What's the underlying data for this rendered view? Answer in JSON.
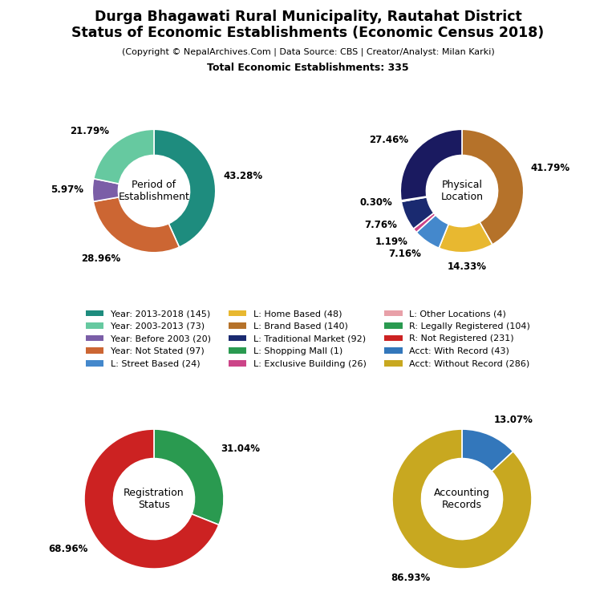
{
  "title": "Durga Bhagawati Rural Municipality, Rautahat District\nStatus of Economic Establishments (Economic Census 2018)",
  "subtitle": "(Copyright © NepalArchives.Com | Data Source: CBS | Creator/Analyst: Milan Karki)",
  "annotations": [
    "Total Economic Establishments: 335"
  ],
  "legend": "center",
  "legend_items": [
    {
      "name": "Year: 2013-2018 (145)",
      "color": "#1e8c7e"
    },
    {
      "name": "Year: 2003-2013 (73)",
      "color": "#66c9a0"
    },
    {
      "name": "Year: Before 2003 (20)",
      "color": "#7b5ea7"
    },
    {
      "name": "Year: Not Stated (97)",
      "color": "#cc6633"
    },
    {
      "name": "L: Street Based (24)",
      "color": "#4488cc"
    },
    {
      "name": "L: Home Based (48)",
      "color": "#e8b830"
    },
    {
      "name": "L: Brand Based (140)",
      "color": "#b5722a"
    },
    {
      "name": "L: Traditional Market (92)",
      "color": "#1a2a70"
    },
    {
      "name": "L: Shopping Mall (1)",
      "color": "#2a9a50"
    },
    {
      "name": "L: Exclusive Building (26)",
      "color": "#cc4488"
    },
    {
      "name": "L: Other Locations (4)",
      "color": "#e8a0a8"
    },
    {
      "name": "R: Legally Registered (104)",
      "color": "#2a9a50"
    },
    {
      "name": "R: Not Registered (231)",
      "color": "#cc2222"
    },
    {
      "name": "Acct: With Record (43)",
      "color": "#3377bb"
    },
    {
      "name": "Acct: Without Record (286)",
      "color": "#c8a820"
    }
  ],
  "chart_data": [
    {
      "type": "pie",
      "label": "Period of\nEstablishment",
      "values": [
        43.28,
        28.96,
        5.97,
        21.79
      ],
      "value_labels": [
        "43.28%",
        "28.96%",
        "5.97%",
        "21.79%"
      ],
      "colors": [
        "#1e8c7e",
        "#cc6633",
        "#7b5ea7",
        "#66c9a0"
      ],
      "data_labels": true
    },
    {
      "type": "pie",
      "label": "Physical\nLocation",
      "values": [
        41.79,
        14.33,
        7.16,
        1.19,
        7.76,
        0.3,
        27.46
      ],
      "value_labels": [
        "41.79%",
        "14.33%",
        "7.16%",
        "1.19%",
        "7.76%",
        "0.30%",
        "27.46%"
      ],
      "colors": [
        "#b5722a",
        "#e8b830",
        "#4488cc",
        "#cc4488",
        "#1a2a70",
        "#2a9a50",
        "#1a1a60"
      ],
      "data_labels": true
    },
    {
      "type": "pie",
      "label": "Registration\nStatus",
      "values": [
        31.04,
        68.96
      ],
      "value_labels": [
        "31.04%",
        "68.96%"
      ],
      "colors": [
        "#2a9a50",
        "#cc2222"
      ],
      "data_labels": true
    },
    {
      "type": "pie",
      "label": "Accounting\nRecords",
      "values": [
        13.07,
        86.93
      ],
      "value_labels": [
        "13.07%",
        "86.93%"
      ],
      "colors": [
        "#3377bb",
        "#c8a820"
      ],
      "data_labels": true
    }
  ]
}
